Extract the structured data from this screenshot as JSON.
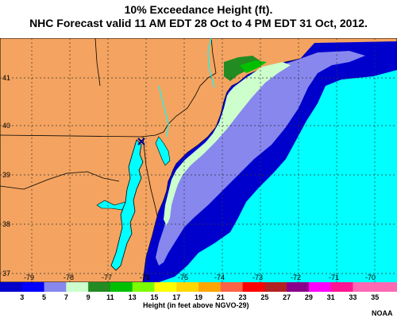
{
  "title": {
    "line1": "10% Exceedance Height (ft).",
    "line2": "NHC Forecast valid 11 AM EDT 28 Oct to 4 PM EDT 31 Oct, 2012."
  },
  "map": {
    "latitude_labels": [
      "41",
      "40",
      "39",
      "38",
      "37"
    ],
    "longitude_labels": [
      "-79",
      "-78",
      "-77",
      "-76",
      "-75",
      "-74",
      "-73",
      "-72",
      "-71",
      "-70"
    ],
    "colors": {
      "land": "#f4a460",
      "ocean": "#00ffff",
      "state_border": "#000000",
      "coast": "#000000"
    }
  },
  "legend": {
    "bins": [
      {
        "label": "3",
        "color": "#0000cd"
      },
      {
        "label": "5",
        "color": "#0000ff"
      },
      {
        "label": "7",
        "color": "#8787ee"
      },
      {
        "label": "9",
        "color": "#ccffcc"
      },
      {
        "label": "11",
        "color": "#228b22"
      },
      {
        "label": "13",
        "color": "#00c000"
      },
      {
        "label": "15",
        "color": "#7cfc00"
      },
      {
        "label": "17",
        "color": "#ffff00"
      },
      {
        "label": "19",
        "color": "#ffd700"
      },
      {
        "label": "21",
        "color": "#ffa500"
      },
      {
        "label": "23",
        "color": "#ff6347"
      },
      {
        "label": "25",
        "color": "#ff0000"
      },
      {
        "label": "27",
        "color": "#b22222"
      },
      {
        "label": "29",
        "color": "#8b008b"
      },
      {
        "label": "31",
        "color": "#ff00ff"
      },
      {
        "label": "33",
        "color": "#ff1493"
      },
      {
        "label": "35",
        "color": "#ff69b4"
      }
    ],
    "caption": "Height (in feet above NGVO-29)",
    "credit": "NOAA"
  }
}
